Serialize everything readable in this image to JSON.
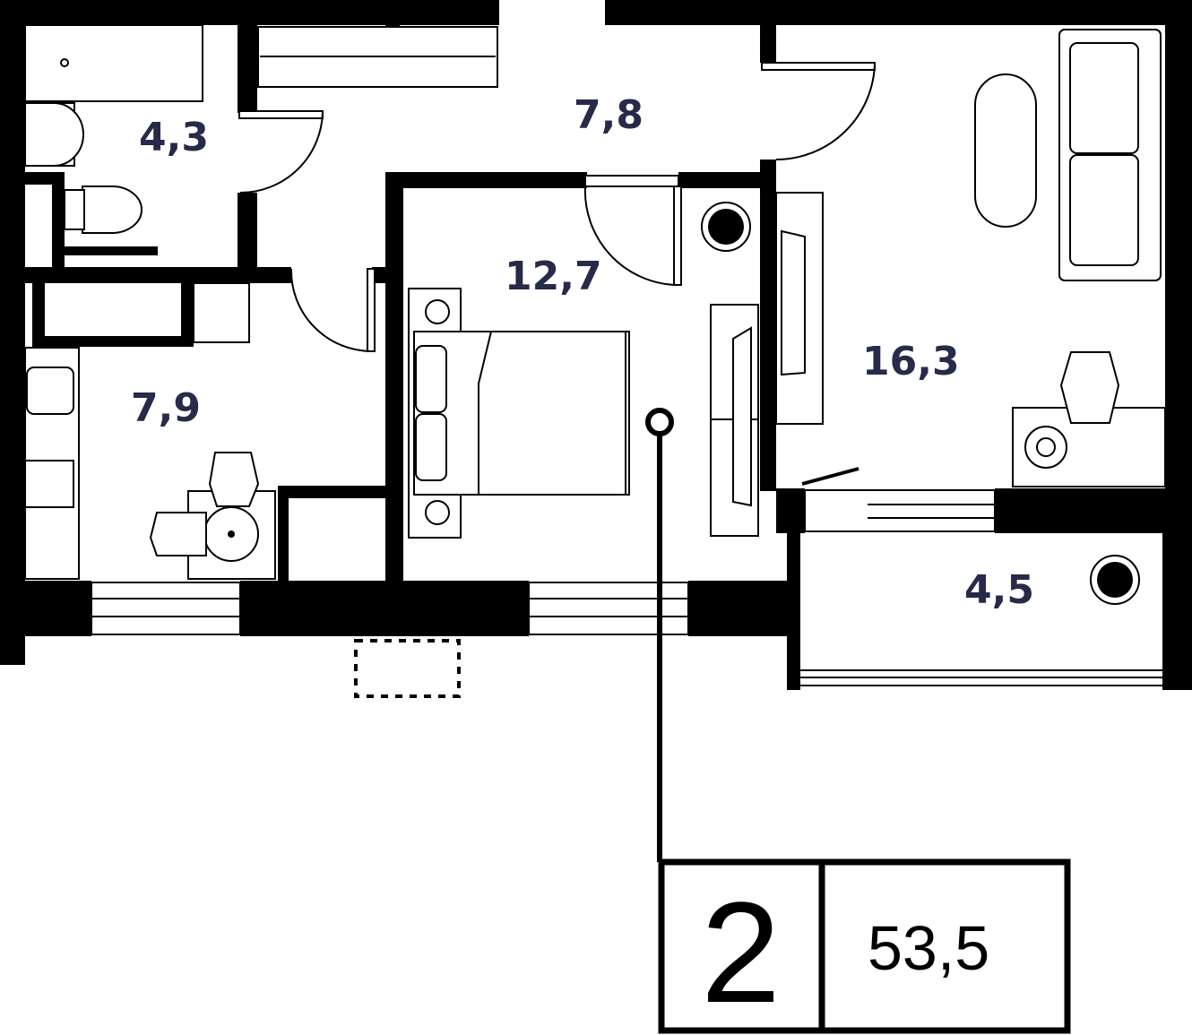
{
  "plan": {
    "rooms": [
      {
        "name": "bathroom",
        "area": "4,3"
      },
      {
        "name": "hallway",
        "area": "7,8"
      },
      {
        "name": "bedroom",
        "area": "12,7"
      },
      {
        "name": "living-room",
        "area": "16,3"
      },
      {
        "name": "kitchen",
        "area": "7,9"
      },
      {
        "name": "balcony",
        "area": "4,5"
      }
    ],
    "room_count": "2",
    "total_area": "53,5",
    "colors": {
      "walls": "#000000",
      "area_labels": "#272a48"
    }
  }
}
